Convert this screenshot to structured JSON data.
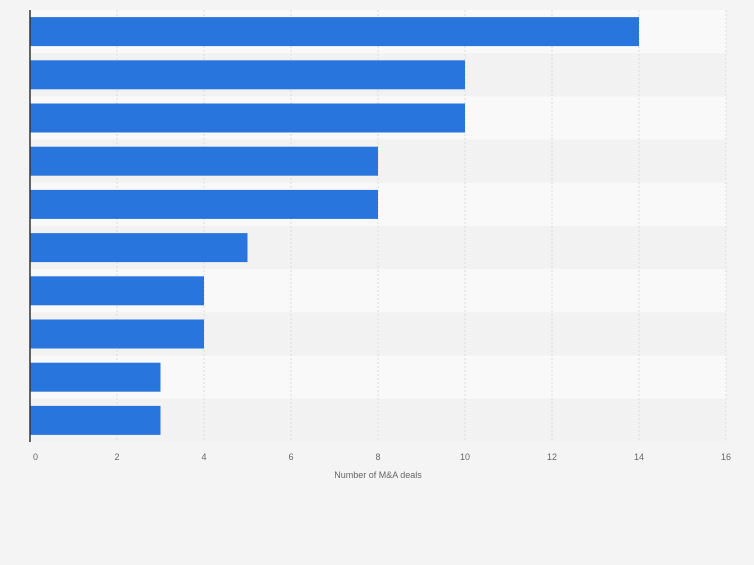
{
  "chart_data": {
    "type": "bar",
    "orientation": "horizontal",
    "categories": [
      "",
      "",
      "",
      "",
      "",
      "",
      "",
      "",
      "",
      ""
    ],
    "values": [
      14,
      10,
      10,
      8,
      8,
      5,
      4,
      4,
      3,
      3
    ],
    "xlabel": "Number of M&A deals",
    "ylabel": "",
    "xlim": [
      0,
      16
    ],
    "ticks": [
      0,
      2,
      4,
      6,
      8,
      10,
      12,
      14,
      16
    ],
    "grid": true,
    "legend": "none",
    "colors": {
      "bar": "#2876dd",
      "band_light": "#f9f9f9",
      "band_dark": "#f2f2f2",
      "grid": "#dcdcdc",
      "axis": "#333333",
      "tick_text": "#666666",
      "page_bg": "#f4f4f4"
    }
  }
}
